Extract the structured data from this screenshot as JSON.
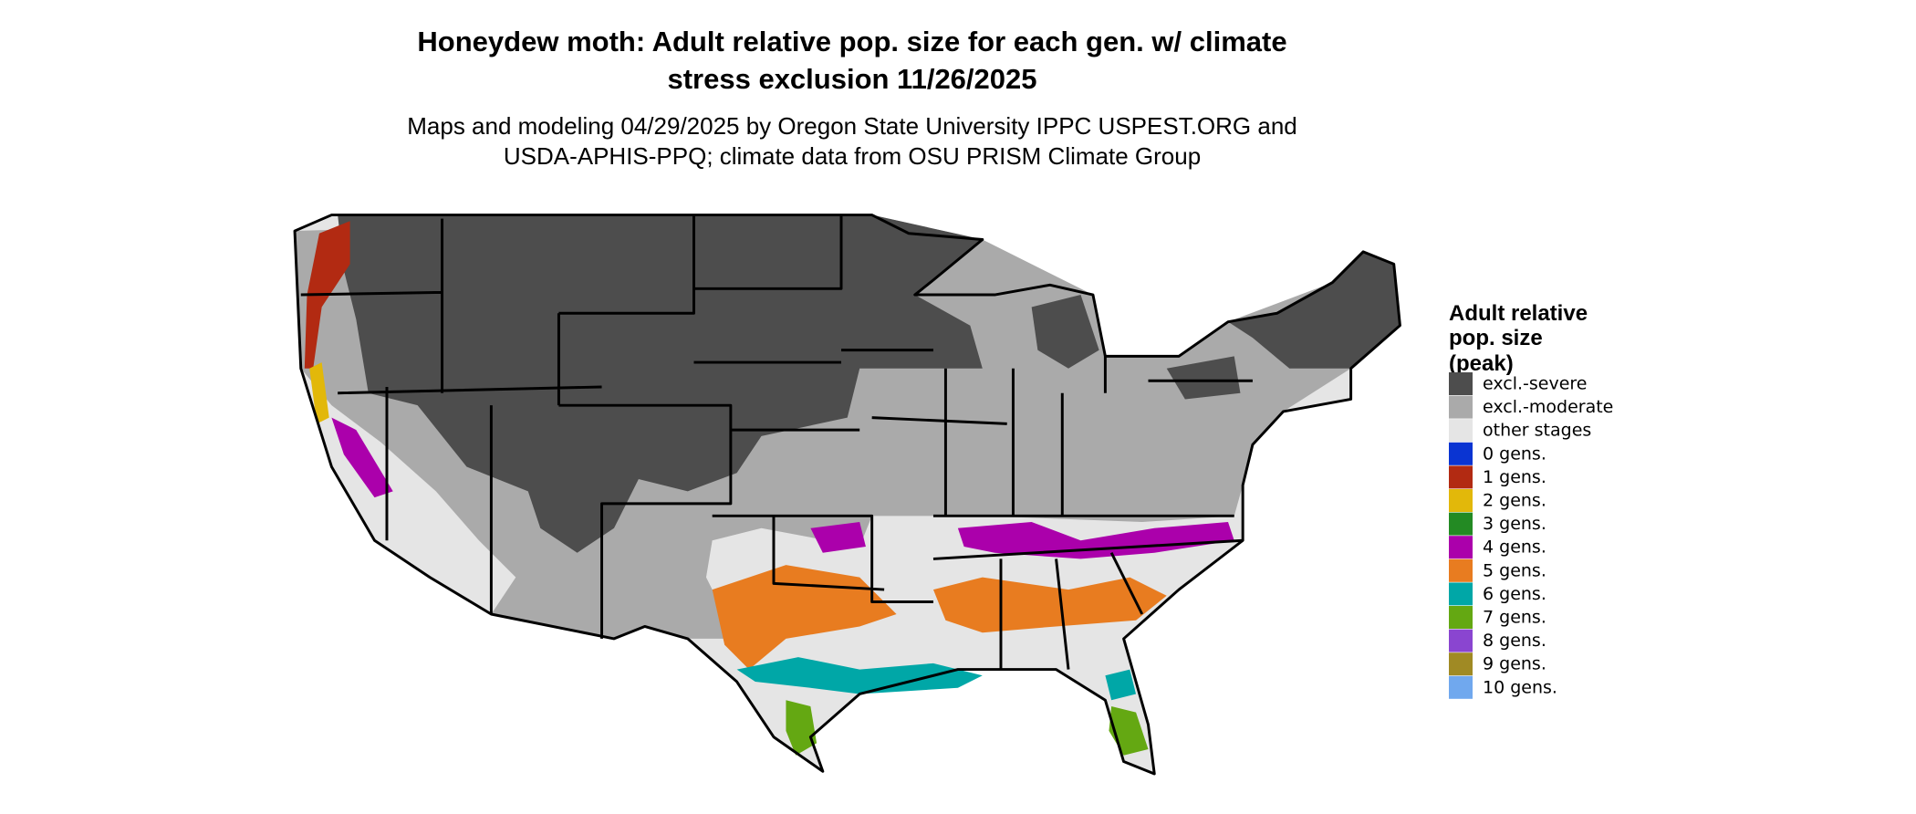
{
  "title": [
    "Honeydew moth: Adult relative pop. size for each gen. w/ climate",
    "stress exclusion 11/26/2025"
  ],
  "subtitle": [
    "Maps and modeling 04/29/2025 by Oregon State University IPPC USPEST.ORG and",
    "USDA-APHIS-PPQ; climate data from OSU PRISM Climate Group"
  ],
  "legend": {
    "title": [
      "Adult relative",
      "pop. size",
      "(peak)"
    ],
    "items": [
      {
        "label": "excl.-severe",
        "color": "#4d4d4d"
      },
      {
        "label": "excl.-moderate",
        "color": "#aaaaaa"
      },
      {
        "label": "other stages",
        "color": "#e5e5e5"
      },
      {
        "label": "0 gens.",
        "color": "#0a34d2"
      },
      {
        "label": "1 gens.",
        "color": "#b22a12"
      },
      {
        "label": "2 gens.",
        "color": "#e2b80a"
      },
      {
        "label": "3 gens.",
        "color": "#238a23"
      },
      {
        "label": "4 gens.",
        "color": "#ab00ab"
      },
      {
        "label": "5 gens.",
        "color": "#e87c20"
      },
      {
        "label": "6 gens.",
        "color": "#00a7a7"
      },
      {
        "label": "7 gens.",
        "color": "#64a812"
      },
      {
        "label": "8 gens.",
        "color": "#8a45d0"
      },
      {
        "label": "9 gens.",
        "color": "#a08a24"
      },
      {
        "label": "10 gens.",
        "color": "#70a8ee"
      }
    ]
  }
}
